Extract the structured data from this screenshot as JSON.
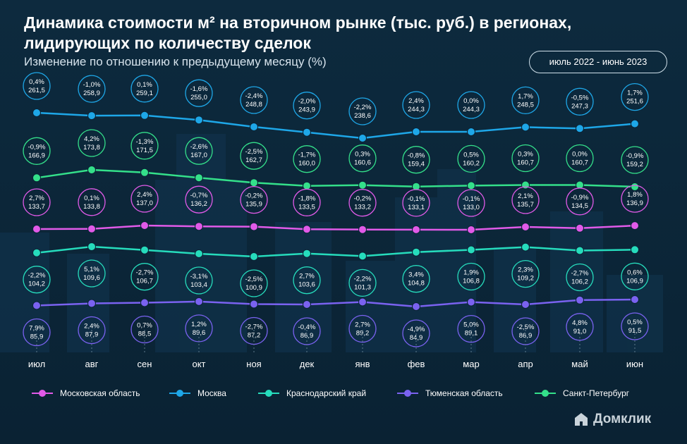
{
  "header": {
    "title": "Динамика стоимости м² на вторичном рынке (тыс. руб.) в регионах, лидирующих по количеству сделок",
    "subtitle": "Изменение по отношению к предыдущему месяцу (%)",
    "period": "июль 2022 - июнь 2023"
  },
  "brand": {
    "name": "Домклик"
  },
  "colors": {
    "background": "#0b2436",
    "moscow": "#1ea7e8",
    "spb": "#34e08a",
    "mo": "#e15ae8",
    "krasnodar": "#26dcbc",
    "tyumen": "#7a62f0"
  },
  "chart_data": {
    "type": "line",
    "title": "Динамика стоимости м² на вторичном рынке (тыс. руб.) в регионах, лидирующих по количеству сделок",
    "subtitle": "Изменение по отношению к предыдущему месяцу (%)",
    "categories": [
      "июл",
      "авг",
      "сен",
      "окт",
      "ноя",
      "дек",
      "янв",
      "фев",
      "мар",
      "апр",
      "май",
      "июн"
    ],
    "series": [
      {
        "name": "Москва",
        "color": "#1ea7e8",
        "label_position": "above",
        "values": [
          261.5,
          258.9,
          259.1,
          255.0,
          248.8,
          243.9,
          238.6,
          244.3,
          244.3,
          248.5,
          247.3,
          251.6
        ],
        "value_labels": [
          "261,5",
          "258,9",
          "259,1",
          "255,0",
          "248,8",
          "243,9",
          "238,6",
          "244,3",
          "244,3",
          "248,5",
          "247,3",
          "251,6"
        ],
        "change_labels": [
          "0,4%",
          "-1,0%",
          "0,1%",
          "-1,6%",
          "-2,4%",
          "-2,0%",
          "-2,2%",
          "2,4%",
          "0,0%",
          "1,7%",
          "-0,5%",
          "1,7%"
        ]
      },
      {
        "name": "Санкт-Петербург",
        "color": "#34e08a",
        "label_position": "above",
        "values": [
          166.9,
          173.8,
          171.5,
          167.0,
          162.7,
          160.0,
          160.6,
          159.4,
          160.2,
          160.7,
          160.7,
          159.2
        ],
        "value_labels": [
          "166,9",
          "173,8",
          "171,5",
          "167,0",
          "162,7",
          "160,0",
          "160,6",
          "159,4",
          "160,2",
          "160,7",
          "160,7",
          "159,2"
        ],
        "change_labels": [
          "-0,9%",
          "4,2%",
          "-1,3%",
          "-2,6%",
          "-2,5%",
          "-1,7%",
          "0,3%",
          "-0,8%",
          "0,5%",
          "0,3%",
          "0,0%",
          "-0,9%"
        ]
      },
      {
        "name": "Московская область",
        "color": "#e15ae8",
        "label_position": "above",
        "values": [
          133.7,
          133.8,
          137.0,
          136.2,
          135.9,
          133.5,
          133.2,
          133.1,
          133.0,
          135.7,
          134.5,
          136.9
        ],
        "value_labels": [
          "133,7",
          "133,8",
          "137,0",
          "136,2",
          "135,9",
          "133,5",
          "133,2",
          "133,1",
          "133,0",
          "135,7",
          "134,5",
          "136,9"
        ],
        "change_labels": [
          "2,7%",
          "0,1%",
          "2,4%",
          "-0,7%",
          "-0,2%",
          "-1,8%",
          "-0,2%",
          "-0,1%",
          "-0,1%",
          "2,1%",
          "-0,9%",
          "1,8%"
        ]
      },
      {
        "name": "Краснодарский край",
        "color": "#26dcbc",
        "label_position": "below",
        "values": [
          104.2,
          109.6,
          106.7,
          103.4,
          100.9,
          103.6,
          101.3,
          104.8,
          106.8,
          109.2,
          106.2,
          106.9
        ],
        "value_labels": [
          "104,2",
          "109,6",
          "106,7",
          "103,4",
          "100,9",
          "103,6",
          "101,3",
          "104,8",
          "106,8",
          "109,2",
          "106,2",
          "106,9"
        ],
        "change_labels": [
          "-2,2%",
          "5,1%",
          "-2,7%",
          "-3,1%",
          "-2,5%",
          "2,7%",
          "-2,2%",
          "3,4%",
          "1,9%",
          "2,3%",
          "-2,7%",
          "0,6%"
        ]
      },
      {
        "name": "Тюменская область",
        "color": "#7a62f0",
        "label_position": "below",
        "values": [
          85.9,
          87.9,
          88.5,
          89.6,
          87.2,
          86.9,
          89.2,
          84.9,
          89.1,
          86.9,
          91.0,
          91.5
        ],
        "value_labels": [
          "85,9",
          "87,9",
          "88,5",
          "89,6",
          "87,2",
          "86,9",
          "89,2",
          "84,9",
          "89,1",
          "86,9",
          "91,0",
          "91,5"
        ],
        "change_labels": [
          "7,9%",
          "2,4%",
          "0,7%",
          "1,2%",
          "-2,7%",
          "-0,4%",
          "2,7%",
          "-4,9%",
          "5,0%",
          "-2,5%",
          "4,8%",
          "0,5%"
        ]
      }
    ],
    "legend": {
      "placement": "bottom",
      "entries": [
        "Московская область",
        "Москва",
        "Краснодарский край",
        "Тюменская область",
        "Санкт-Петербург"
      ],
      "colors": [
        "#e15ae8",
        "#1ea7e8",
        "#26dcbc",
        "#7a62f0",
        "#34e08a"
      ]
    },
    "y_axis": {
      "visible": false
    },
    "grid": false
  }
}
